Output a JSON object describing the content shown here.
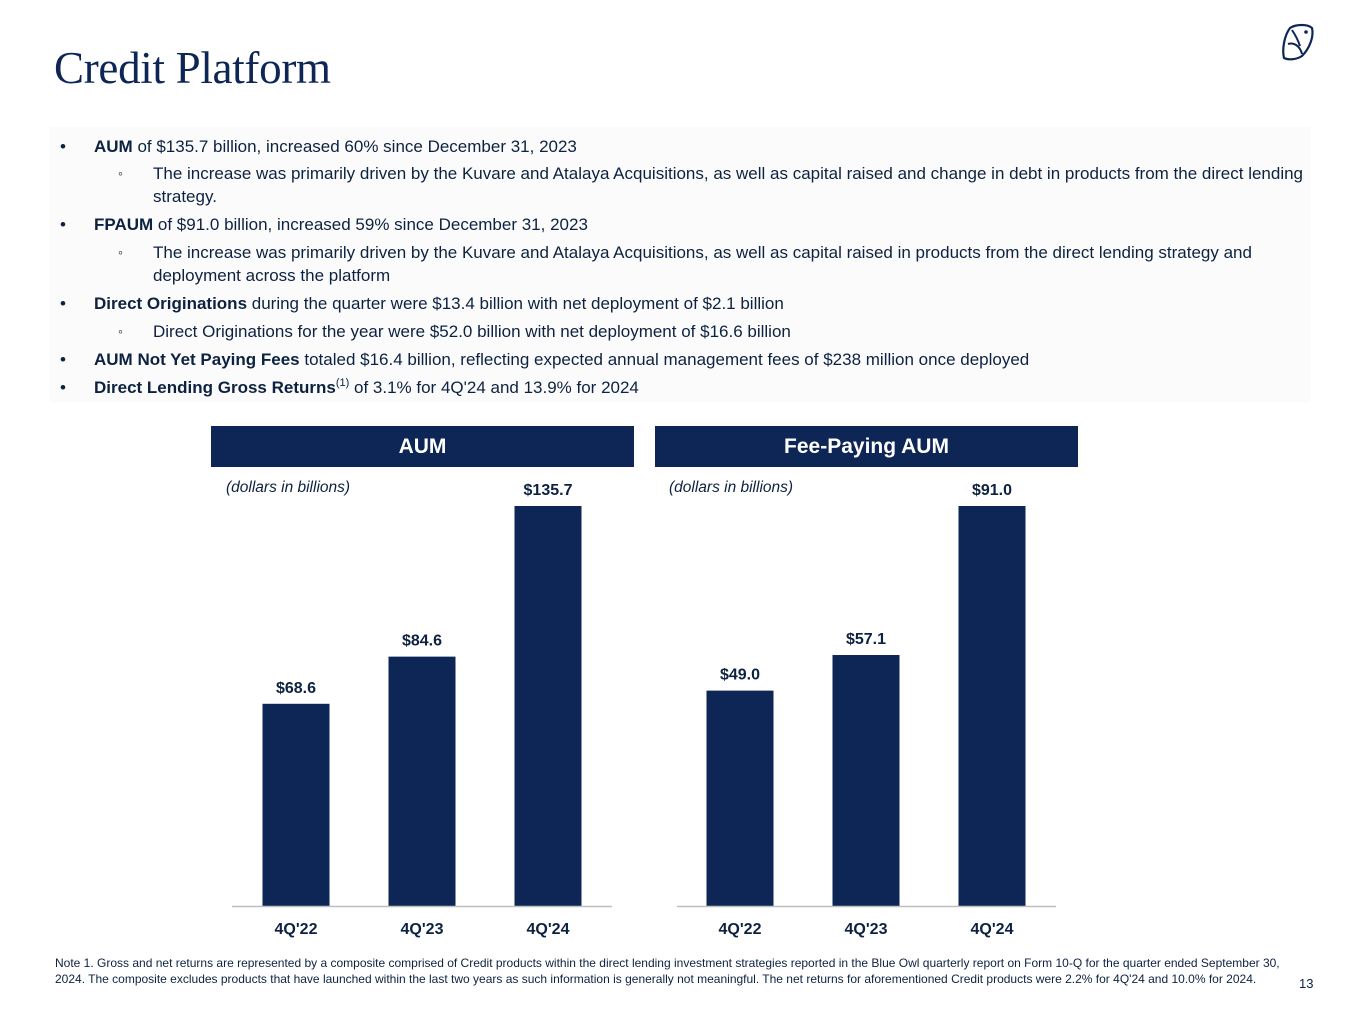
{
  "page": {
    "title": "Credit Platform",
    "page_number": "13",
    "note": "Note 1. Gross and net returns are represented by a composite comprised of Credit products within the direct lending investment strategies reported in the Blue Owl quarterly report on Form 10-Q for the quarter ended September 30, 2024. The composite excludes products that have launched within the last two years as such information is generally not meaningful. The net returns for aforementioned Credit products were 2.2% for 4Q'24 and 10.0% for 2024."
  },
  "bullets": {
    "b1_bold": "AUM",
    "b1_text": " of $135.7 billion, increased 60% since December 31, 2023",
    "b1_sub": "The increase was primarily driven by the Kuvare and Atalaya Acquisitions, as well as capital raised and change in debt in products from the direct lending strategy.",
    "b2_bold": "FPAUM",
    "b2_text": " of $91.0 billion, increased 59% since December 31, 2023",
    "b2_sub": "The increase was primarily driven by the Kuvare and Atalaya Acquisitions, as well as capital raised in products from the direct lending strategy and deployment across the platform",
    "b3_bold": "Direct Originations",
    "b3_text": " during the quarter were $13.4 billion with net deployment of $2.1 billion",
    "b3_sub": "Direct Originations for the year were $52.0 billion with net deployment of $16.6 billion",
    "b4_bold": "AUM Not Yet Paying Fees",
    "b4_text": " totaled $16.4 billion, reflecting expected annual management fees of $238 million once deployed",
    "b5_bold": "Direct Lending Gross Returns",
    "b5_sup": "(1)",
    "b5_text": " of 3.1% for 4Q'24 and 13.9% for 2024",
    "marker": "•",
    "sub_marker": "◦"
  },
  "chart_data": [
    {
      "type": "bar",
      "title": "AUM",
      "subtitle": "(dollars in billions)",
      "categories": [
        "4Q'22",
        "4Q'23",
        "4Q'24"
      ],
      "values": [
        68.6,
        84.6,
        135.7
      ],
      "labels": [
        "$68.6",
        "$84.6",
        "$135.7"
      ],
      "ylim": [
        0,
        135.7
      ],
      "color": "#0d2656"
    },
    {
      "type": "bar",
      "title": "Fee-Paying AUM",
      "subtitle": "(dollars in billions)",
      "categories": [
        "4Q'22",
        "4Q'23",
        "4Q'24"
      ],
      "values": [
        49.0,
        57.1,
        91.0
      ],
      "labels": [
        "$49.0",
        "$57.1",
        "$91.0"
      ],
      "ylim": [
        0,
        91.0
      ],
      "color": "#0d2656"
    }
  ],
  "icons": {
    "logo": "owl-logo-icon"
  }
}
